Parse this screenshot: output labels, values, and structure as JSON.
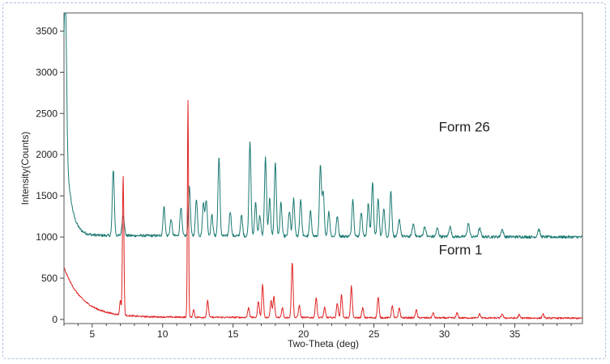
{
  "chart_data": {
    "type": "line",
    "title": "",
    "xlabel": "Two-Theta (deg)",
    "ylabel": "Intensity(Counts)",
    "xlim": [
      3,
      39.8
    ],
    "ylim": [
      -50,
      3720
    ],
    "x_ticks": [
      5,
      10,
      15,
      20,
      25,
      30,
      35
    ],
    "y_ticks": [
      0,
      500,
      1000,
      1500,
      2000,
      2500,
      3000,
      3500
    ],
    "series": [
      {
        "name": "Form 26",
        "color": "#1b7a72",
        "baseline": {
          "floor": 1020,
          "end": 1000,
          "lowAngleAmp": 1600,
          "lowAngleDecay": 0.38
        },
        "peaks": [
          [
            3.1,
            1800,
            0.08
          ],
          [
            6.5,
            800,
            0.07
          ],
          [
            7.2,
            250,
            0.08
          ],
          [
            10.1,
            350,
            0.07
          ],
          [
            10.6,
            200,
            0.07
          ],
          [
            11.3,
            350,
            0.07
          ],
          [
            11.9,
            600,
            0.07
          ],
          [
            12.4,
            450,
            0.07
          ],
          [
            12.9,
            400,
            0.07
          ],
          [
            13.1,
            430,
            0.07
          ],
          [
            13.5,
            250,
            0.07
          ],
          [
            14.0,
            950,
            0.07
          ],
          [
            14.8,
            300,
            0.07
          ],
          [
            15.6,
            250,
            0.07
          ],
          [
            16.2,
            1150,
            0.07
          ],
          [
            16.6,
            400,
            0.07
          ],
          [
            16.9,
            250,
            0.07
          ],
          [
            17.3,
            950,
            0.07
          ],
          [
            17.6,
            450,
            0.07
          ],
          [
            18.0,
            900,
            0.07
          ],
          [
            18.4,
            400,
            0.07
          ],
          [
            19.0,
            300,
            0.07
          ],
          [
            19.3,
            450,
            0.07
          ],
          [
            19.8,
            450,
            0.07
          ],
          [
            20.5,
            300,
            0.07
          ],
          [
            21.2,
            850,
            0.07
          ],
          [
            21.4,
            550,
            0.07
          ],
          [
            21.8,
            300,
            0.07
          ],
          [
            22.4,
            250,
            0.07
          ],
          [
            23.5,
            450,
            0.07
          ],
          [
            24.1,
            300,
            0.07
          ],
          [
            24.6,
            400,
            0.07
          ],
          [
            24.9,
            650,
            0.07
          ],
          [
            25.3,
            450,
            0.07
          ],
          [
            25.7,
            350,
            0.07
          ],
          [
            26.2,
            550,
            0.07
          ],
          [
            26.8,
            200,
            0.08
          ],
          [
            27.8,
            150,
            0.08
          ],
          [
            28.6,
            120,
            0.08
          ],
          [
            29.5,
            100,
            0.08
          ],
          [
            30.4,
            120,
            0.08
          ],
          [
            31.7,
            160,
            0.08
          ],
          [
            32.5,
            100,
            0.08
          ],
          [
            34.1,
            90,
            0.08
          ],
          [
            36.7,
            90,
            0.08
          ]
        ]
      },
      {
        "name": "Form 1",
        "color": "#e02424",
        "baseline": {
          "floor": 30,
          "end": 15,
          "lowAngleAmp": 600,
          "lowAngleDecay": 1.3
        },
        "peaks": [
          [
            7.0,
            180,
            0.05
          ],
          [
            7.2,
            1700,
            0.05
          ],
          [
            11.8,
            2650,
            0.04
          ],
          [
            12.2,
            100,
            0.05
          ],
          [
            13.2,
            200,
            0.06
          ],
          [
            16.1,
            120,
            0.06
          ],
          [
            16.8,
            200,
            0.06
          ],
          [
            17.1,
            400,
            0.06
          ],
          [
            17.7,
            200,
            0.06
          ],
          [
            17.9,
            250,
            0.06
          ],
          [
            18.5,
            120,
            0.06
          ],
          [
            19.2,
            670,
            0.06
          ],
          [
            19.7,
            150,
            0.06
          ],
          [
            20.9,
            250,
            0.06
          ],
          [
            21.5,
            120,
            0.06
          ],
          [
            22.4,
            180,
            0.06
          ],
          [
            22.7,
            280,
            0.06
          ],
          [
            23.4,
            380,
            0.06
          ],
          [
            24.2,
            120,
            0.06
          ],
          [
            25.3,
            250,
            0.06
          ],
          [
            26.3,
            150,
            0.06
          ],
          [
            26.8,
            120,
            0.06
          ],
          [
            28.0,
            100,
            0.06
          ],
          [
            29.2,
            60,
            0.06
          ],
          [
            30.9,
            60,
            0.06
          ],
          [
            32.5,
            50,
            0.06
          ],
          [
            34.1,
            50,
            0.06
          ],
          [
            35.3,
            40,
            0.06
          ],
          [
            37.0,
            50,
            0.06
          ]
        ]
      }
    ],
    "annotations": [
      {
        "text": "Form 26",
        "x": 29.6,
        "y": 2280
      },
      {
        "text": "Form 1",
        "x": 29.6,
        "y": 790
      }
    ]
  }
}
